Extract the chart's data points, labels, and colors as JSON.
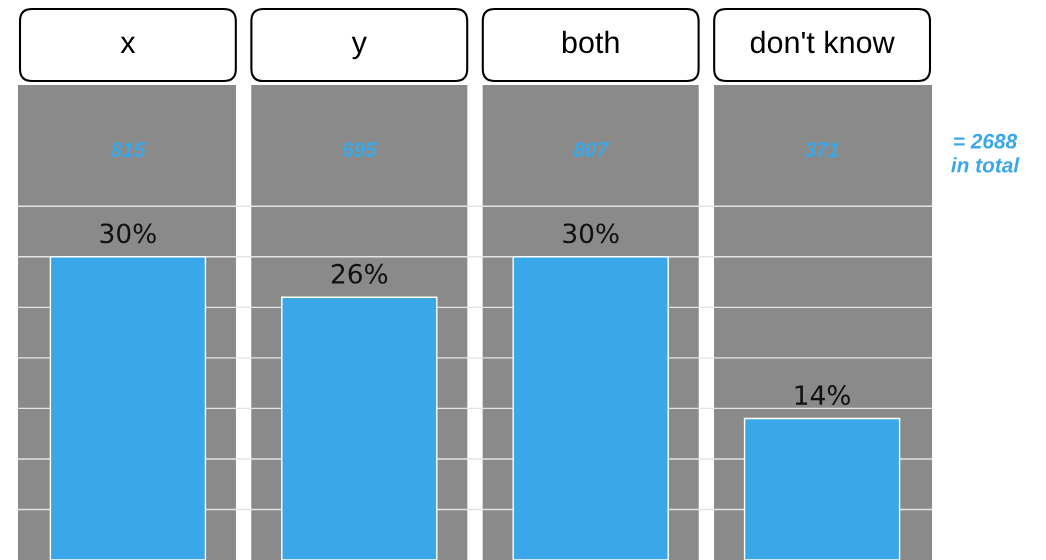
{
  "chart_data": {
    "type": "bar",
    "categories": [
      "x",
      "y",
      "both",
      "don't know"
    ],
    "values": [
      30,
      26,
      30,
      14
    ],
    "color": "#3aa8e8",
    "value_labels": [
      "30%",
      "26%",
      "30%",
      "14%"
    ],
    "ylim": [
      0,
      47
    ],
    "yticks": [
      {
        "value": 5,
        "label": null
      },
      {
        "value": 10,
        "label": null
      },
      {
        "value": 15,
        "label": null
      },
      {
        "value": 20,
        "label": null
      },
      {
        "value": 25,
        "label": null
      },
      {
        "value": 30,
        "label": null
      },
      {
        "value": 35,
        "label": null
      }
    ],
    "grid": "y",
    "legend": false,
    "annotations": [
      "815",
      "695",
      "807",
      "371",
      "= 2688\nin total"
    ]
  }
}
